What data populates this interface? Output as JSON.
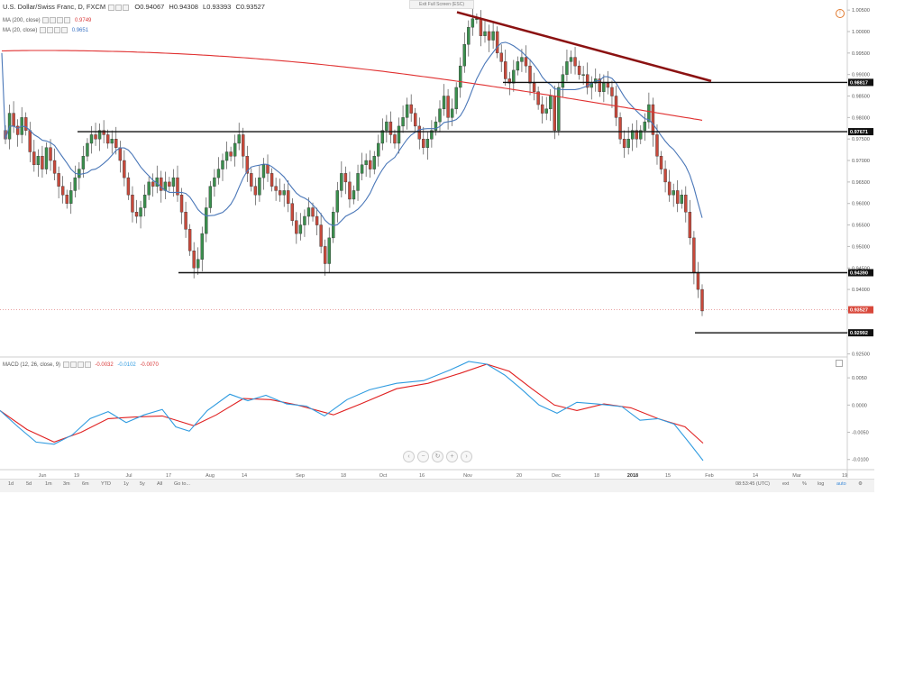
{
  "header": {
    "symbol": "U.S. Dollar/Swiss Franc, D, FXCM",
    "ohlc": [
      "O0.94067",
      "H0.94308",
      "L0.93393",
      "C0.93527"
    ],
    "exit_fullscreen": "Exit Full Screen (ESC)",
    "indicators": [
      {
        "label": "MA (200, close)",
        "value": "0.9749",
        "color": "#d93a3a"
      },
      {
        "label": "MA (20, close)",
        "value": "0.9651",
        "color": "#3b73c4"
      }
    ]
  },
  "macd_header": {
    "label": "MACD (12, 26, close, 9)",
    "values": [
      {
        "text": "-0.0032",
        "color": "#d93a3a"
      },
      {
        "text": "-0.0102",
        "color": "#2f9be0"
      },
      {
        "text": "-0.0070",
        "color": "#d93a3a"
      }
    ]
  },
  "colors": {
    "up": "#3a8f4d",
    "down": "#c8493b",
    "ma200": "#e03131",
    "ma20": "#4a77b8",
    "trend": "#8b1212",
    "macd": "#2f9be0",
    "signal": "#e02020"
  },
  "chart_data": {
    "type": "candlestick",
    "x_ticks": [
      "Jun",
      "19",
      "Jul",
      "17",
      "Aug",
      "14",
      "Sep",
      "18",
      "Oct",
      "16",
      "Nov",
      "20",
      "Dec",
      "18",
      "2018",
      "15",
      "Feb",
      "14",
      "Mar",
      "19"
    ],
    "y_ticks": [
      "1.00500",
      "1.00000",
      "0.99500",
      "0.99000",
      "0.98500",
      "0.98000",
      "0.97500",
      "0.97000",
      "0.96500",
      "0.96000",
      "0.95500",
      "0.95000",
      "0.94500",
      "0.94000",
      "0.93500",
      "0.93000",
      "0.92500"
    ],
    "ylim": [
      0.9245,
      1.0065
    ],
    "close_series": [
      0.975,
      0.981,
      0.978,
      0.976,
      0.98,
      0.977,
      0.972,
      0.969,
      0.971,
      0.968,
      0.973,
      0.97,
      0.967,
      0.964,
      0.962,
      0.96,
      0.963,
      0.966,
      0.968,
      0.971,
      0.974,
      0.976,
      0.975,
      0.977,
      0.976,
      0.974,
      0.975,
      0.973,
      0.97,
      0.966,
      0.962,
      0.958,
      0.957,
      0.959,
      0.962,
      0.965,
      0.964,
      0.966,
      0.963,
      0.965,
      0.964,
      0.966,
      0.962,
      0.958,
      0.954,
      0.949,
      0.945,
      0.947,
      0.953,
      0.959,
      0.964,
      0.966,
      0.968,
      0.97,
      0.972,
      0.971,
      0.974,
      0.976,
      0.971,
      0.967,
      0.964,
      0.962,
      0.966,
      0.969,
      0.967,
      0.964,
      0.963,
      0.962,
      0.963,
      0.96,
      0.956,
      0.953,
      0.955,
      0.957,
      0.959,
      0.957,
      0.955,
      0.95,
      0.946,
      0.952,
      0.958,
      0.963,
      0.967,
      0.965,
      0.961,
      0.963,
      0.967,
      0.969,
      0.97,
      0.968,
      0.971,
      0.974,
      0.977,
      0.979,
      0.976,
      0.974,
      0.978,
      0.98,
      0.983,
      0.981,
      0.978,
      0.975,
      0.973,
      0.975,
      0.977,
      0.979,
      0.982,
      0.985,
      0.98,
      0.982,
      0.987,
      0.992,
      0.997,
      1.001,
      1.003,
      1.003,
      0.999,
      1.0,
      0.998,
      1.0,
      0.995,
      0.993,
      0.989,
      0.988,
      0.991,
      0.993,
      0.994,
      0.992,
      0.988,
      0.986,
      0.983,
      0.981,
      0.982,
      0.985,
      0.977,
      0.987,
      0.99,
      0.993,
      0.994,
      0.992,
      0.99,
      0.99,
      0.987,
      0.988,
      0.989,
      0.986,
      0.988,
      0.987,
      0.985,
      0.98,
      0.975,
      0.973,
      0.975,
      0.977,
      0.975,
      0.977,
      0.979,
      0.983,
      0.976,
      0.971,
      0.968,
      0.965,
      0.962,
      0.963,
      0.96,
      0.962,
      0.958,
      0.952,
      0.944,
      0.94,
      0.935
    ],
    "ma20": {
      "name": "MA (20, close)",
      "last": 0.9651
    },
    "ma200": {
      "name": "MA (200, close)",
      "last": 0.9749
    },
    "price_labels": [
      "0.98817",
      "0.97671",
      "0.94390",
      "0.93527",
      "0.92992"
    ],
    "trendline": {
      "from": [
        "Nov",
        1.0045
      ],
      "to": [
        "Jan",
        0.9885
      ]
    },
    "horizontal_levels": [
      0.98817,
      0.97671,
      0.9439,
      0.92992
    ],
    "macd_ticks": [
      "0.0050",
      "0.0000",
      "-0.0050",
      "-0.0100"
    ],
    "macd_last": -0.0102,
    "signal_last": -0.007
  },
  "timeframes": [
    "1d",
    "5d",
    "1m",
    "3m",
    "6m",
    "YTD",
    "1y",
    "5y",
    "All",
    "Go to..."
  ],
  "footer": {
    "time": "08:53:45 (UTC)",
    "ext": "ext",
    "pct": "%",
    "log": "log",
    "auto": "auto"
  }
}
